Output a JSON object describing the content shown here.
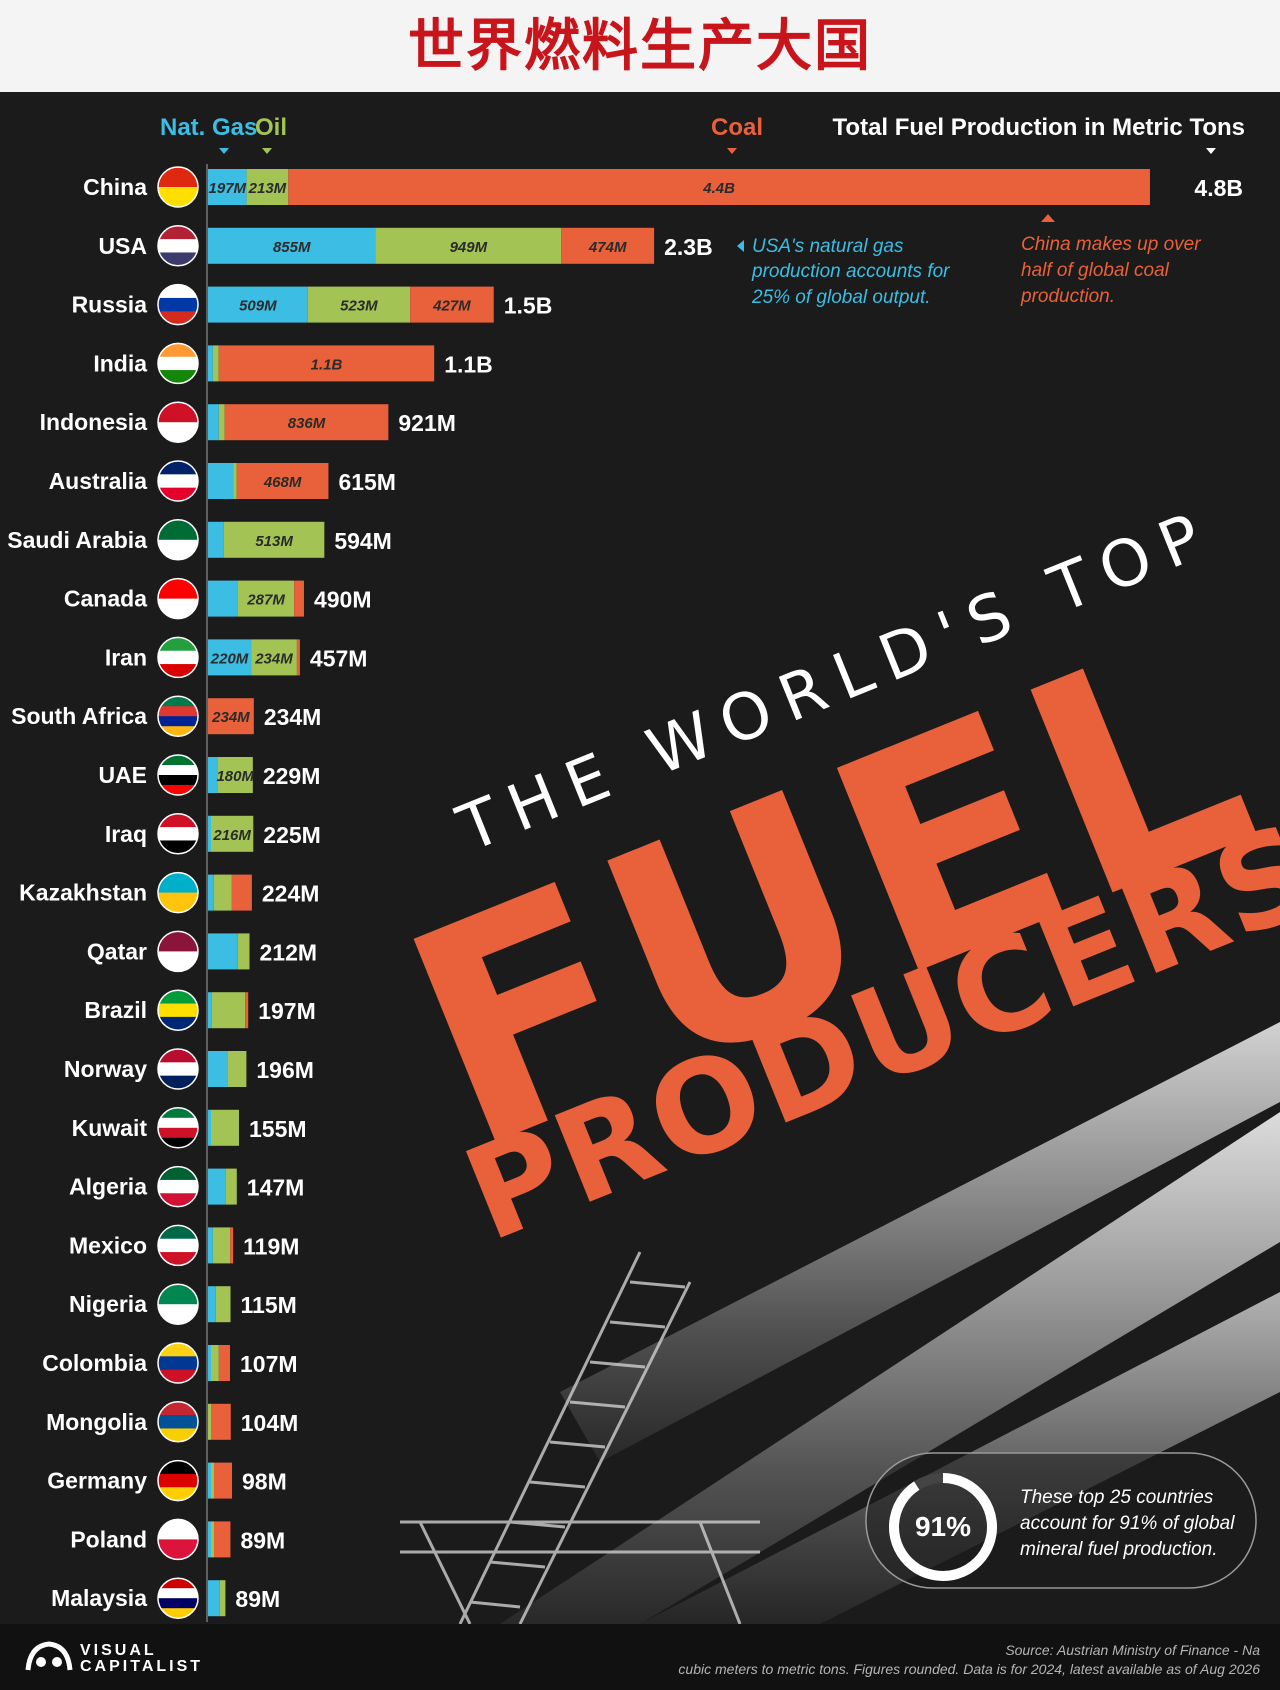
{
  "banner": {
    "title": "世界燃料生产大国"
  },
  "poster": {
    "title_top": "THE WORLD'S TOP",
    "title_main": "FUEL",
    "title_sub": "PRODUCERS"
  },
  "legend": {
    "gas": "Nat. Gas",
    "oil": "Oil",
    "coal": "Coal",
    "total": "Total Fuel Production in Metric Tons"
  },
  "colors": {
    "gas": "#3bbde4",
    "oil": "#a3c455",
    "coal": "#e8613a",
    "background": "#1b1b1b"
  },
  "annotations": {
    "usa_note": [
      "USA's natural gas",
      "production accounts for",
      "25% of global output."
    ],
    "china_note": [
      "China makes up over",
      "half of global coal",
      "production."
    ],
    "share_badge": "91%",
    "share_note": [
      "These top 25 countries",
      "account for 91% of global",
      "mineral fuel production."
    ]
  },
  "chart_data": {
    "type": "bar",
    "orientation": "horizontal",
    "stacked": true,
    "unit": "metric tons",
    "series_order": [
      "Nat. Gas",
      "Oil",
      "Coal"
    ],
    "rows": [
      {
        "country": "China",
        "gas": 197,
        "oil": 213,
        "coal": 4400,
        "gas_label": "197M",
        "oil_label": "213M",
        "coal_label": "4.4B",
        "total": 4800,
        "total_label": "4.8B",
        "flag": [
          "#de2910",
          "#ffde00"
        ]
      },
      {
        "country": "USA",
        "gas": 855,
        "oil": 949,
        "coal": 474,
        "gas_label": "855M",
        "oil_label": "949M",
        "coal_label": "474M",
        "total": 2300,
        "total_label": "2.3B",
        "flag": [
          "#b22234",
          "#ffffff",
          "#3c3b6e"
        ]
      },
      {
        "country": "Russia",
        "gas": 509,
        "oil": 523,
        "coal": 427,
        "gas_label": "509M",
        "oil_label": "523M",
        "coal_label": "427M",
        "total": 1500,
        "total_label": "1.5B",
        "flag": [
          "#ffffff",
          "#0039a6",
          "#d52b1e"
        ]
      },
      {
        "country": "India",
        "gas": 25,
        "oil": 30,
        "coal": 1100,
        "coal_label": "1.1B",
        "total": 1100,
        "total_label": "1.1B",
        "flag": [
          "#ff9933",
          "#ffffff",
          "#138808"
        ]
      },
      {
        "country": "Indonesia",
        "gas": 55,
        "oil": 30,
        "coal": 836,
        "coal_label": "836M",
        "total": 921,
        "total_label": "921M",
        "flag": [
          "#ce1126",
          "#ffffff"
        ]
      },
      {
        "country": "Australia",
        "gas": 130,
        "oil": 17,
        "coal": 468,
        "coal_label": "468M",
        "total": 615,
        "total_label": "615M",
        "flag": [
          "#012169",
          "#ffffff",
          "#e4002b"
        ]
      },
      {
        "country": "Saudi Arabia",
        "gas": 81,
        "oil": 513,
        "coal": 0,
        "oil_label": "513M",
        "total": 594,
        "total_label": "594M",
        "flag": [
          "#006c35",
          "#ffffff"
        ]
      },
      {
        "country": "Canada",
        "gas": 153,
        "oil": 287,
        "coal": 50,
        "oil_label": "287M",
        "total": 490,
        "total_label": "490M",
        "flag": [
          "#ff0000",
          "#ffffff"
        ]
      },
      {
        "country": "Iran",
        "gas": 220,
        "oil": 234,
        "coal": 3,
        "gas_label": "220M",
        "oil_label": "234M",
        "total": 457,
        "total_label": "457M",
        "flag": [
          "#239f40",
          "#ffffff",
          "#da0000"
        ]
      },
      {
        "country": "South Africa",
        "gas": 0,
        "oil": 0,
        "coal": 234,
        "coal_label": "234M",
        "total": 234,
        "total_label": "234M",
        "flag": [
          "#007a4d",
          "#de3831",
          "#002395",
          "#ffb612"
        ]
      },
      {
        "country": "UAE",
        "gas": 49,
        "oil": 180,
        "coal": 0,
        "oil_label": "180M",
        "total": 229,
        "total_label": "229M",
        "flag": [
          "#00732f",
          "#ffffff",
          "#000000",
          "#ff0000"
        ]
      },
      {
        "country": "Iraq",
        "gas": 9,
        "oil": 216,
        "coal": 0,
        "oil_label": "216M",
        "total": 225,
        "total_label": "225M",
        "flag": [
          "#ce1126",
          "#ffffff",
          "#000000"
        ]
      },
      {
        "country": "Kazakhstan",
        "gas": 30,
        "oil": 90,
        "coal": 104,
        "total": 224,
        "total_label": "224M",
        "flag": [
          "#00afca",
          "#fec50c"
        ]
      },
      {
        "country": "Qatar",
        "gas": 152,
        "oil": 60,
        "coal": 0,
        "total": 212,
        "total_label": "212M",
        "flag": [
          "#8a1538",
          "#ffffff"
        ]
      },
      {
        "country": "Brazil",
        "gas": 20,
        "oil": 170,
        "coal": 7,
        "total": 197,
        "total_label": "197M",
        "flag": [
          "#009c3b",
          "#ffdf00",
          "#002776"
        ]
      },
      {
        "country": "Norway",
        "gas": 100,
        "oil": 96,
        "coal": 0,
        "total": 196,
        "total_label": "196M",
        "flag": [
          "#ba0c2f",
          "#ffffff",
          "#00205b"
        ]
      },
      {
        "country": "Kuwait",
        "gas": 12,
        "oil": 143,
        "coal": 0,
        "total": 155,
        "total_label": "155M",
        "flag": [
          "#007a3d",
          "#ffffff",
          "#ce1126",
          "#000000"
        ]
      },
      {
        "country": "Algeria",
        "gas": 90,
        "oil": 57,
        "coal": 0,
        "total": 147,
        "total_label": "147M",
        "flag": [
          "#006233",
          "#ffffff",
          "#d21034"
        ]
      },
      {
        "country": "Mexico",
        "gas": 25,
        "oil": 88,
        "coal": 6,
        "total": 119,
        "total_label": "119M",
        "flag": [
          "#006847",
          "#ffffff",
          "#ce1126"
        ]
      },
      {
        "country": "Nigeria",
        "gas": 40,
        "oil": 75,
        "coal": 0,
        "total": 115,
        "total_label": "115M",
        "flag": [
          "#008751",
          "#ffffff"
        ]
      },
      {
        "country": "Colombia",
        "gas": 10,
        "oil": 40,
        "coal": 57,
        "total": 107,
        "total_label": "107M",
        "flag": [
          "#fcd116",
          "#003893",
          "#ce1126"
        ]
      },
      {
        "country": "Mongolia",
        "gas": 0,
        "oil": 3,
        "coal": 101,
        "total": 104,
        "total_label": "104M",
        "flag": [
          "#c4272f",
          "#015197",
          "#f9cf02"
        ]
      },
      {
        "country": "Germany",
        "gas": 4,
        "oil": 2,
        "coal": 92,
        "total": 98,
        "total_label": "98M",
        "flag": [
          "#000000",
          "#dd0000",
          "#ffce00"
        ]
      },
      {
        "country": "Poland",
        "gas": 4,
        "oil": 1,
        "coal": 84,
        "total": 89,
        "total_label": "89M",
        "flag": [
          "#ffffff",
          "#dc143c"
        ]
      },
      {
        "country": "Malaysia",
        "gas": 60,
        "oil": 29,
        "coal": 0,
        "total": 89,
        "total_label": "89M",
        "flag": [
          "#cc0001",
          "#ffffff",
          "#010066",
          "#ffcc00"
        ]
      }
    ]
  },
  "footer": {
    "brand_line1": "VISUAL",
    "brand_line2": "CAPITALIST",
    "source_line1": "Source: Austrian Ministry of Finance - Na",
    "source_line2": "cubic meters to metric tons. Figures rounded. Data is for 2024, latest available as of Aug 2026"
  }
}
